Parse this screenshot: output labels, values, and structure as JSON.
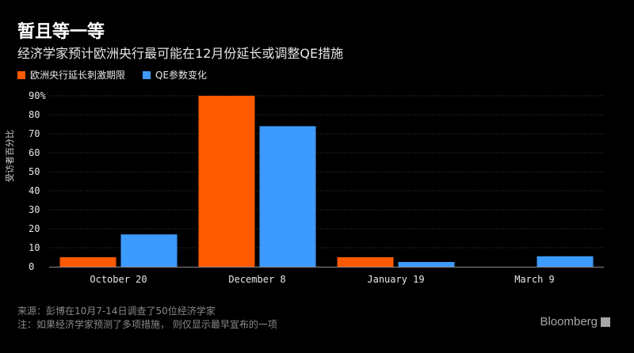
{
  "title": "暂且等一等",
  "subtitle": "经济学家预计欧洲央行最可能在12月份延长或调整QE措施",
  "colors": {
    "series1": "#ff5a00",
    "series2": "#3d9bff",
    "grid": "#3a3a3a",
    "axis": "#8a8a8a"
  },
  "footer": {
    "source": "来源：彭博在10月7-14日调查了50位经济学家",
    "note": "注：如果经济学家预测了多项措施，  则仅显示最早宣布的一项",
    "brand": "Bloomberg"
  },
  "chart_data": {
    "type": "bar",
    "categories": [
      "October 20",
      "December 8",
      "January 19",
      "March 9"
    ],
    "series": [
      {
        "name": "欧洲央行延长刺激期限",
        "values": [
          5,
          90,
          5,
          0
        ]
      },
      {
        "name": "QE参数变化",
        "values": [
          17,
          74,
          2.5,
          5.5
        ]
      }
    ],
    "ylabel": "受访者百分比",
    "ylim": [
      0,
      90
    ],
    "yticks": [
      "0",
      "10",
      "20",
      "30",
      "40",
      "50",
      "60",
      "70",
      "80",
      "90%"
    ],
    "grid": true,
    "legend": "top-left"
  }
}
